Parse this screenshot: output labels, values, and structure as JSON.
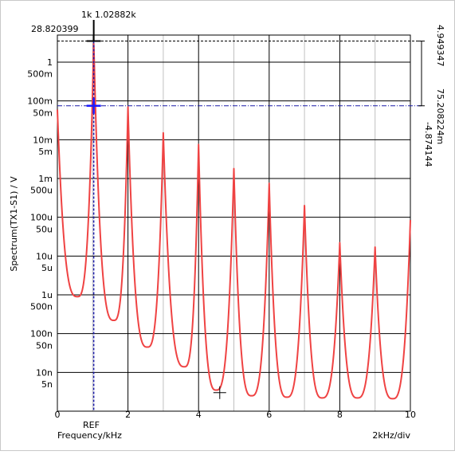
{
  "chart_data": {
    "type": "line",
    "title": "",
    "xlabel": "Frequency/kHz",
    "ylabel": "Spectrum(TX1-S1) / V",
    "x_scale": "linear",
    "y_scale": "log",
    "xlim": [
      0,
      10
    ],
    "ylim": [
      1e-09,
      5
    ],
    "x_ticks": [
      {
        "value": 0,
        "label": "0"
      },
      {
        "value": 2,
        "label": "2"
      },
      {
        "value": 4,
        "label": "4"
      },
      {
        "value": 6,
        "label": "6"
      },
      {
        "value": 8,
        "label": "8"
      },
      {
        "value": 10,
        "label": "10"
      }
    ],
    "y_ticks": [
      {
        "value": 1,
        "label": "1"
      },
      {
        "value": 0.5,
        "label": "500m"
      },
      {
        "value": 0.1,
        "label": "100m"
      },
      {
        "value": 0.05,
        "label": "50m"
      },
      {
        "value": 0.01,
        "label": "10m"
      },
      {
        "value": 0.005,
        "label": "5m"
      },
      {
        "value": 0.001,
        "label": "1m"
      },
      {
        "value": 0.0005,
        "label": "500u"
      },
      {
        "value": 0.0001,
        "label": "100u"
      },
      {
        "value": 5e-05,
        "label": "50u"
      },
      {
        "value": 1e-05,
        "label": "10u"
      },
      {
        "value": 5e-06,
        "label": "5u"
      },
      {
        "value": 1e-06,
        "label": "1u"
      },
      {
        "value": 5e-07,
        "label": "500n"
      },
      {
        "value": 1e-07,
        "label": "100n"
      },
      {
        "value": 5e-08,
        "label": "50n"
      },
      {
        "value": 1e-08,
        "label": "10n"
      },
      {
        "value": 5e-09,
        "label": "5n"
      }
    ],
    "grid": true,
    "div_label": "2kHz/div",
    "series": [
      {
        "color": "#ef4343",
        "peaks": [
          {
            "x": 0,
            "y": 0.06
          },
          {
            "x": 1.03,
            "y": 3.5
          },
          {
            "x": 2,
            "y": 0.07
          },
          {
            "x": 3,
            "y": 0.015
          },
          {
            "x": 4,
            "y": 0.0075
          },
          {
            "x": 5,
            "y": 0.0018
          },
          {
            "x": 6,
            "y": 0.00075
          },
          {
            "x": 7,
            "y": 0.0002
          },
          {
            "x": 8,
            "y": 2.2e-05
          },
          {
            "x": 9,
            "y": 1.7e-05
          },
          {
            "x": 10,
            "y": 8.5e-05
          }
        ],
        "valleys": [
          {
            "x": 0.57,
            "y": 9e-07
          },
          {
            "x": 1.6,
            "y": 2.2e-07
          },
          {
            "x": 2.55,
            "y": 4.5e-08
          },
          {
            "x": 3.6,
            "y": 1.4e-08
          },
          {
            "x": 4.5,
            "y": 3.5e-09
          },
          {
            "x": 5.5,
            "y": 2.5e-09
          },
          {
            "x": 6.5,
            "y": 2.3e-09
          },
          {
            "x": 7.5,
            "y": 2.2e-09
          },
          {
            "x": 8.5,
            "y": 2.2e-09
          },
          {
            "x": 9.5,
            "y": 2.1e-09
          }
        ]
      }
    ],
    "cursors": {
      "vertical": {
        "top_value": "1k 1.02882k",
        "x": 1.03,
        "ref_label": "REF"
      },
      "horizontal": {
        "upper_value_label": "28.820399",
        "upper_y": 3.5,
        "lower_y": 0.075,
        "upper_right_label": "4.949347",
        "delta_label": "75.208224m",
        "lower_right_label": "-4.874144"
      },
      "marker_x": 4.6,
      "marker_y": 3e-09
    }
  }
}
